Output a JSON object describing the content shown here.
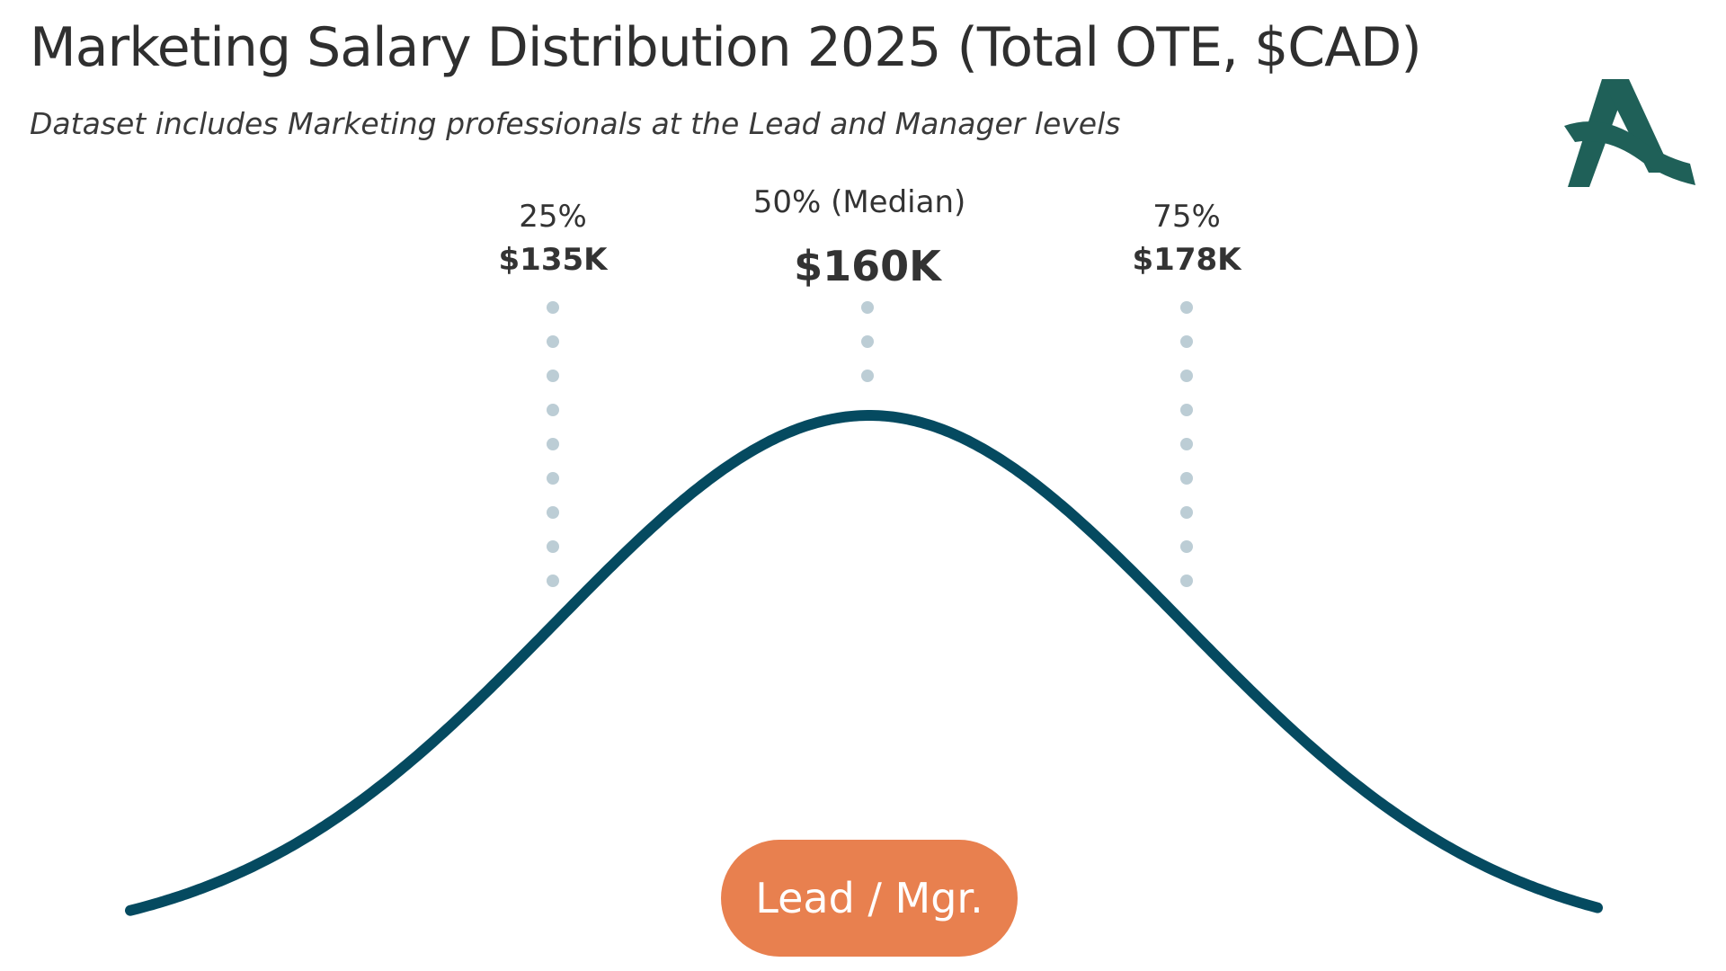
{
  "header": {
    "title": "Marketing Salary Distribution 2025 (Total OTE, $CAD)",
    "subtitle": "Dataset includes Marketing professionals at the Lead and Manager levels"
  },
  "logo": {
    "icon": "stylized-letter-a-logo-icon",
    "color": "#1f6058"
  },
  "colors": {
    "curve": "#054a60",
    "dots": "#bccdd5",
    "pill": "#e8804f",
    "text": "#333333"
  },
  "chart_data": {
    "type": "area",
    "curve": "bell (normal distribution)",
    "markers": [
      {
        "percentile_label": "25%",
        "value_label": "$135K",
        "value": 135
      },
      {
        "percentile_label": "50% (Median)",
        "value_label": "$160K",
        "value": 160
      },
      {
        "percentile_label": "75%",
        "value_label": "$178K",
        "value": 178
      }
    ],
    "category_label": "Lead / Mgr."
  }
}
